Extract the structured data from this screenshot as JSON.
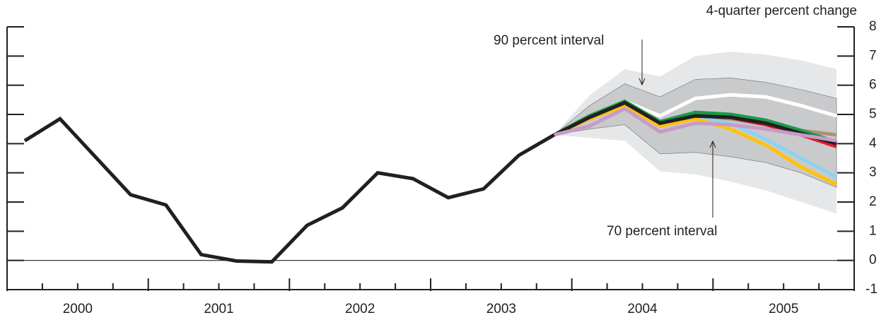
{
  "chart_data": {
    "type": "line",
    "y_axis_label": "4-quarter percent change",
    "annotations": [
      "90 percent interval",
      "70 percent interval"
    ],
    "x": [
      2000.125,
      2000.375,
      2000.625,
      2000.875,
      2001.125,
      2001.375,
      2001.625,
      2001.875,
      2002.125,
      2002.375,
      2002.625,
      2002.875,
      2003.125,
      2003.375,
      2003.625,
      2003.875,
      2004.125,
      2004.375,
      2004.625,
      2004.875,
      2005.125,
      2005.375,
      2005.625,
      2005.875
    ],
    "xlim": [
      2000,
      2006
    ],
    "xticks": [
      {
        "value": 2000.5,
        "label": "2000"
      },
      {
        "value": 2001.5,
        "label": "2001"
      },
      {
        "value": 2002.5,
        "label": "2002"
      },
      {
        "value": 2003.5,
        "label": "2003"
      },
      {
        "value": 2004.5,
        "label": "2004"
      },
      {
        "value": 2005.5,
        "label": "2005"
      }
    ],
    "ylim": [
      -1,
      8
    ],
    "yticks": [
      -1,
      0,
      1,
      2,
      3,
      4,
      5,
      6,
      7,
      8
    ],
    "grid": false,
    "bands": [
      {
        "color": "#e6e7e8",
        "lower": [
          null,
          null,
          null,
          null,
          null,
          null,
          null,
          null,
          null,
          null,
          null,
          null,
          null,
          null,
          null,
          4.3,
          4.2,
          4.1,
          3.05,
          2.95,
          2.7,
          2.4,
          2.0,
          1.6
        ],
        "upper": [
          null,
          null,
          null,
          null,
          null,
          null,
          null,
          null,
          null,
          null,
          null,
          null,
          null,
          null,
          null,
          4.3,
          5.65,
          6.55,
          6.3,
          7.0,
          7.15,
          7.05,
          6.85,
          6.55
        ]
      },
      {
        "color": "#c9cacc",
        "lower": [
          null,
          null,
          null,
          null,
          null,
          null,
          null,
          null,
          null,
          null,
          null,
          null,
          null,
          null,
          null,
          4.3,
          4.5,
          4.65,
          3.65,
          3.7,
          3.55,
          3.35,
          3.0,
          2.5
        ],
        "upper": [
          null,
          null,
          null,
          null,
          null,
          null,
          null,
          null,
          null,
          null,
          null,
          null,
          null,
          null,
          null,
          4.3,
          5.3,
          6.05,
          5.6,
          6.2,
          6.25,
          6.1,
          5.85,
          5.55
        ]
      }
    ],
    "series": [
      {
        "color": "#ffffff",
        "values": [
          null,
          null,
          null,
          null,
          null,
          null,
          null,
          null,
          null,
          null,
          null,
          null,
          null,
          null,
          null,
          4.3,
          4.95,
          5.45,
          4.95,
          5.55,
          5.67,
          5.6,
          5.3,
          4.95
        ]
      },
      {
        "color": "#b09070",
        "values": [
          null,
          null,
          null,
          null,
          null,
          null,
          null,
          null,
          null,
          null,
          null,
          null,
          null,
          null,
          null,
          4.3,
          4.9,
          5.4,
          4.7,
          4.95,
          4.85,
          4.65,
          4.45,
          4.3
        ]
      },
      {
        "color": "#8dd3ef",
        "values": [
          null,
          null,
          null,
          null,
          null,
          null,
          null,
          null,
          null,
          null,
          null,
          null,
          null,
          null,
          null,
          4.3,
          4.85,
          5.3,
          4.6,
          4.9,
          4.7,
          4.15,
          3.5,
          2.85
        ]
      },
      {
        "color": "#ffc20e",
        "values": [
          null,
          null,
          null,
          null,
          null,
          null,
          null,
          null,
          null,
          null,
          null,
          null,
          null,
          null,
          null,
          4.3,
          4.85,
          5.3,
          4.6,
          4.85,
          4.5,
          3.95,
          3.2,
          2.6
        ]
      },
      {
        "color": "#e0202c",
        "values": [
          null,
          null,
          null,
          null,
          null,
          null,
          null,
          null,
          null,
          null,
          null,
          null,
          null,
          null,
          null,
          4.3,
          4.9,
          5.4,
          4.7,
          4.95,
          4.9,
          4.65,
          4.3,
          3.9
        ]
      },
      {
        "color": "#1a9a4a",
        "values": [
          null,
          null,
          null,
          null,
          null,
          null,
          null,
          null,
          null,
          null,
          null,
          null,
          null,
          null,
          null,
          4.3,
          4.95,
          5.45,
          4.75,
          5.07,
          5.0,
          4.8,
          4.45,
          4.05
        ]
      },
      {
        "color": "#231f20",
        "values": [
          null,
          null,
          null,
          null,
          null,
          null,
          null,
          null,
          null,
          null,
          null,
          null,
          null,
          null,
          null,
          4.3,
          4.9,
          5.4,
          4.7,
          4.95,
          4.9,
          4.7,
          4.35,
          4.0
        ]
      },
      {
        "color": "#c89ac8",
        "values": [
          null,
          null,
          null,
          null,
          null,
          null,
          null,
          null,
          null,
          null,
          null,
          null,
          null,
          null,
          null,
          4.3,
          4.6,
          5.2,
          4.4,
          4.7,
          4.65,
          4.5,
          4.3,
          4.1
        ]
      },
      {
        "color": "#231f20",
        "values": [
          4.1,
          4.85,
          3.55,
          2.25,
          1.9,
          0.2,
          -0.02,
          -0.05,
          1.2,
          1.8,
          3.0,
          2.8,
          2.15,
          2.45,
          3.6,
          4.3,
          null,
          null,
          null,
          null,
          null,
          null,
          null,
          null
        ]
      }
    ]
  }
}
